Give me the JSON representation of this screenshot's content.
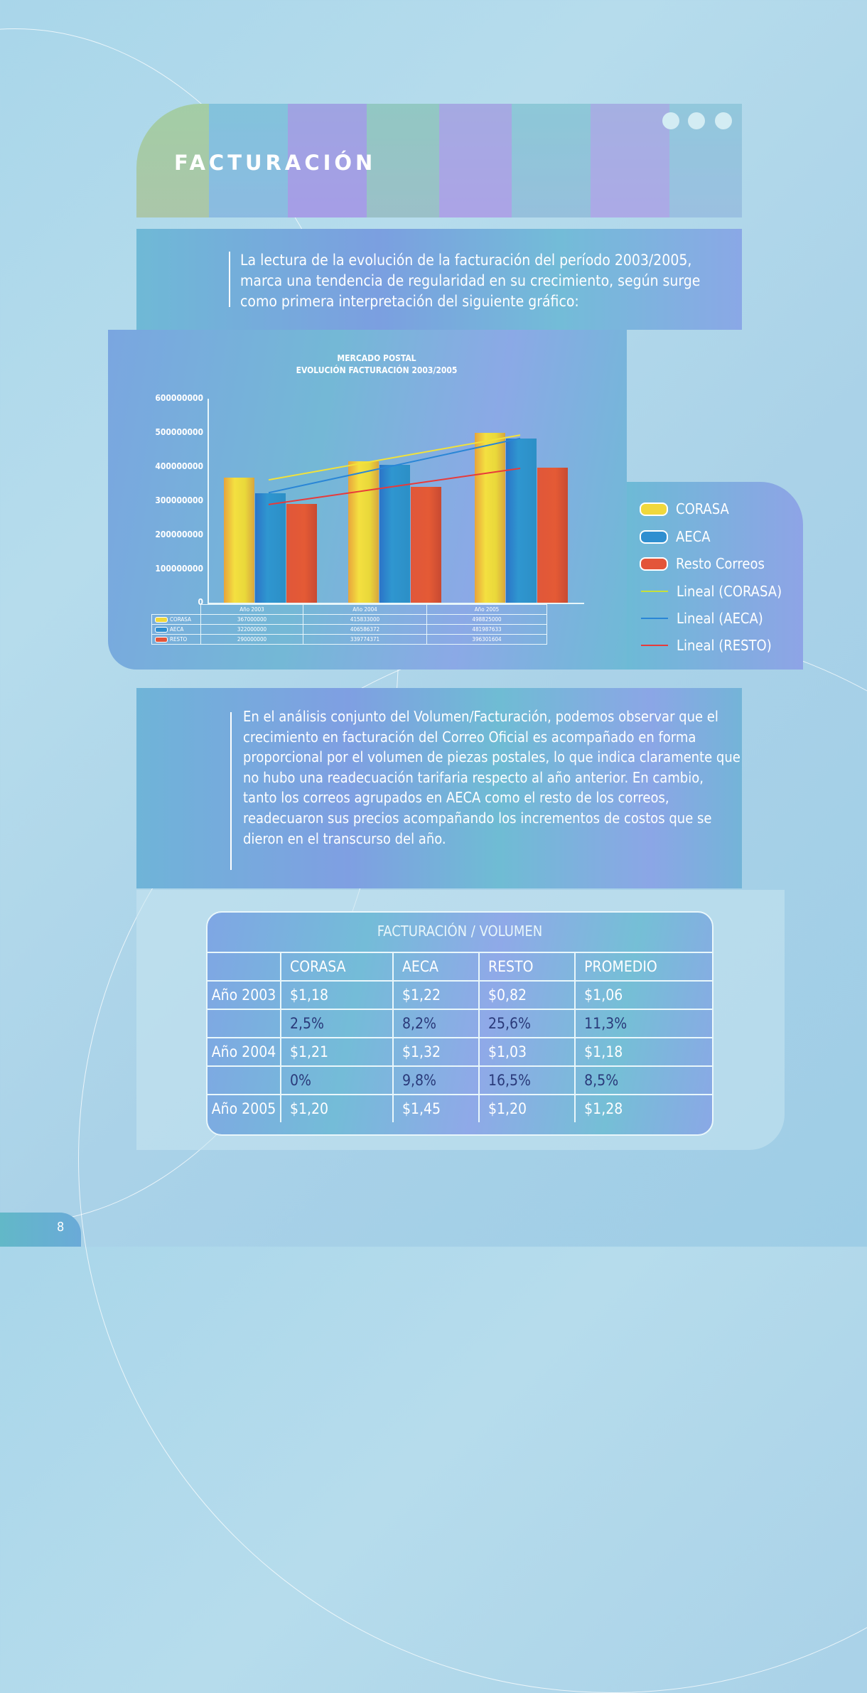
{
  "header": {
    "title": "FACTURACIÓN",
    "dots": 3
  },
  "intro": {
    "text": "La lectura de la evolución de la facturación del período 2003/2005, marca una tendencia de regularidad en su crecimiento, según surge como primera interpretación del siguiente gráfico:"
  },
  "chart": {
    "title_line1": "MERCADO POSTAL",
    "title_line2": "EVOLUCIÓN FACTURACIÓN 2003/2005",
    "yticks": [
      "600000000",
      "500000000",
      "400000000",
      "300000000",
      "200000000",
      "100000000",
      "0"
    ],
    "data_table": {
      "headers": [
        "Año 2003",
        "Año 2004",
        "Año 2005"
      ],
      "rows": [
        {
          "label": "CORASA",
          "values": [
            "367000000",
            "415833000",
            "498825000"
          ]
        },
        {
          "label": "AECA",
          "values": [
            "322000000",
            "406586372",
            "481987633"
          ]
        },
        {
          "label": "RESTO",
          "values": [
            "290000000",
            "339774371",
            "396301604"
          ]
        }
      ]
    },
    "legend": [
      "CORASA",
      "AECA",
      "Resto Correos",
      "Lineal (CORASA)",
      "Lineal (AECA)",
      "Lineal (RESTO)"
    ]
  },
  "colors": {
    "corasa": "#f0d83c",
    "aeca": "#2f8fd0",
    "resto": "#e3553a",
    "trend_corasa": "#f2e23a",
    "trend_aeca": "#2a86d6",
    "trend_resto": "#e83a3a"
  },
  "chart_data": {
    "type": "bar",
    "title": "MERCADO POSTAL — EVOLUCIÓN FACTURACIÓN 2003/2005",
    "categories": [
      "Año 2003",
      "Año 2004",
      "Año 2005"
    ],
    "series": [
      {
        "name": "CORASA",
        "values": [
          367000000,
          415833000,
          498825000
        ]
      },
      {
        "name": "AECA",
        "values": [
          322000000,
          406586372,
          481987633
        ]
      },
      {
        "name": "Resto Correos",
        "values": [
          290000000,
          339774371,
          396301604
        ]
      }
    ],
    "trendlines": [
      {
        "name": "Lineal (CORASA)",
        "type": "linear"
      },
      {
        "name": "Lineal (AECA)",
        "type": "linear"
      },
      {
        "name": "Lineal (RESTO)",
        "type": "linear"
      }
    ],
    "xlabel": "",
    "ylabel": "",
    "ylim": [
      0,
      600000000
    ],
    "yticks": [
      0,
      100000000,
      200000000,
      300000000,
      400000000,
      500000000,
      600000000
    ],
    "grid": false,
    "legend_position": "right",
    "data_table_below": true
  },
  "analysis": {
    "text": "En el análisis conjunto del Volumen/Facturación, podemos observar que el crecimiento en facturación del Correo Oficial es acompañado en forma proporcional por el volumen de piezas postales, lo que indica claramente que no hubo una readecuación tarifaria respecto al año anterior.  En cambio, tanto los correos agrupados en AECA como el resto de los correos, readecuaron sus precios acompañando los incrementos de costos que se dieron en el transcurso del año."
  },
  "fv_table": {
    "title": "FACTURACIÓN / VOLUMEN",
    "headers": [
      "",
      "CORASA",
      "AECA",
      "RESTO",
      "PROMEDIO"
    ],
    "rows": [
      [
        "Año 2003",
        "$1,18",
        "$1,22",
        "$0,82",
        "$1,06"
      ],
      [
        "",
        "2,5%",
        "8,2%",
        "25,6%",
        "11,3%"
      ],
      [
        "Año 2004",
        "$1,21",
        "$1,32",
        "$1,03",
        "$1,18"
      ],
      [
        "",
        "0%",
        "9,8%",
        "16,5%",
        "8,5%"
      ],
      [
        "Año 2005",
        "$1,20",
        "$1,45",
        "$1,20",
        "$1,28"
      ]
    ]
  },
  "page": {
    "number": "8"
  }
}
